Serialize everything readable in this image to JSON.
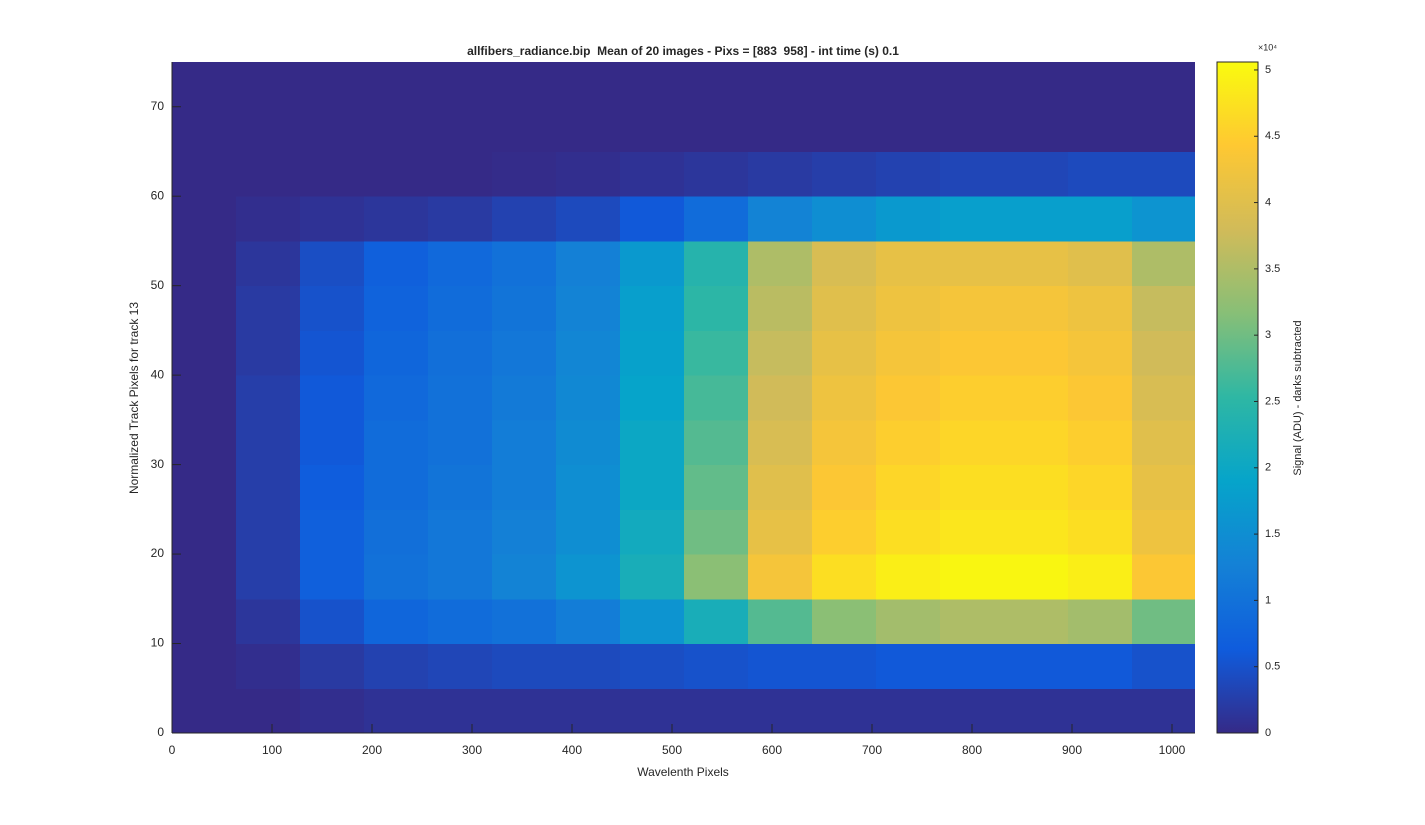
{
  "chart_data": {
    "type": "heatmap",
    "title": "allfibers_radiance.bip  Mean of 20 images - Pixs = [883  958] - int time (s) 0.1",
    "x_label": "Wavelenth Pixels",
    "y_label": "Normalized Track Pixels for track 13",
    "colorbar_label": "Signal (ADU) - darks subtracted",
    "colorbar_exponent": "×10⁴",
    "xlim": [
      0,
      1023
    ],
    "xticks": [
      0,
      100,
      200,
      300,
      400,
      500,
      600,
      700,
      800,
      900,
      1000
    ],
    "ylim": [
      0,
      75
    ],
    "yticks": [
      0,
      10,
      20,
      30,
      40,
      50,
      60,
      70
    ],
    "clim": [
      0,
      5.06
    ],
    "cticks": [
      0,
      0.5,
      1,
      1.5,
      2,
      2.5,
      3,
      3.5,
      4,
      4.5,
      5
    ],
    "colormap": [
      "#352a87",
      "#0f5cdd",
      "#1481d6",
      "#06a4ca",
      "#2eb7a4",
      "#87bf77",
      "#d1bb59",
      "#fec832",
      "#f9fb0e"
    ],
    "x_edges": [
      0,
      64,
      128,
      192,
      256,
      320,
      384,
      448,
      512,
      576,
      640,
      704,
      768,
      832,
      896,
      960,
      1023
    ],
    "y_edges": [
      0,
      5,
      10,
      15,
      20,
      25,
      30,
      35,
      40,
      45,
      50,
      55,
      60,
      65,
      70,
      75
    ],
    "values": [
      [
        0,
        0,
        0.05,
        0.1,
        0.1,
        0.1,
        0.1,
        0.1,
        0.1,
        0.1,
        0.1,
        0.1,
        0.1,
        0.1,
        0.1,
        0.1
      ],
      [
        0,
        0.05,
        0.2,
        0.3,
        0.35,
        0.4,
        0.4,
        0.45,
        0.5,
        0.55,
        0.55,
        0.6,
        0.6,
        0.6,
        0.6,
        0.5
      ],
      [
        0,
        0.15,
        0.5,
        0.8,
        0.9,
        1.0,
        1.2,
        1.6,
        2.2,
        2.8,
        3.2,
        3.4,
        3.5,
        3.5,
        3.4,
        3.0
      ],
      [
        0,
        0.25,
        0.7,
        1.0,
        1.1,
        1.3,
        1.6,
        2.2,
        3.2,
        4.3,
        4.7,
        4.9,
        5.0,
        5.0,
        4.9,
        4.4
      ],
      [
        0,
        0.25,
        0.7,
        0.95,
        1.1,
        1.25,
        1.5,
        2.1,
        3.0,
        4.1,
        4.5,
        4.7,
        4.8,
        4.8,
        4.7,
        4.2
      ],
      [
        0,
        0.25,
        0.65,
        0.9,
        1.05,
        1.2,
        1.5,
        2.0,
        2.9,
        4.0,
        4.4,
        4.6,
        4.7,
        4.7,
        4.6,
        4.1
      ],
      [
        0,
        0.25,
        0.6,
        0.9,
        1.0,
        1.2,
        1.45,
        2.0,
        2.8,
        3.9,
        4.3,
        4.5,
        4.6,
        4.6,
        4.5,
        4.0
      ],
      [
        0,
        0.25,
        0.6,
        0.85,
        1.0,
        1.15,
        1.4,
        1.9,
        2.7,
        3.8,
        4.2,
        4.4,
        4.5,
        4.5,
        4.4,
        3.9
      ],
      [
        0,
        0.2,
        0.55,
        0.8,
        0.95,
        1.1,
        1.35,
        1.85,
        2.6,
        3.7,
        4.1,
        4.3,
        4.4,
        4.4,
        4.3,
        3.8
      ],
      [
        0,
        0.2,
        0.5,
        0.75,
        0.9,
        1.05,
        1.3,
        1.8,
        2.5,
        3.6,
        4.0,
        4.2,
        4.3,
        4.3,
        4.2,
        3.7
      ],
      [
        0,
        0.15,
        0.45,
        0.7,
        0.85,
        1.0,
        1.25,
        1.7,
        2.4,
        3.5,
        3.9,
        4.1,
        4.1,
        4.1,
        4.0,
        3.5
      ],
      [
        0,
        0.05,
        0.1,
        0.15,
        0.2,
        0.3,
        0.4,
        0.6,
        0.9,
        1.3,
        1.5,
        1.7,
        1.8,
        1.8,
        1.8,
        1.6
      ],
      [
        0,
        0,
        0,
        0,
        0,
        0.02,
        0.05,
        0.1,
        0.15,
        0.2,
        0.25,
        0.3,
        0.35,
        0.35,
        0.4,
        0.4
      ],
      [
        0,
        0,
        0,
        0,
        0,
        0,
        0,
        0,
        0,
        0,
        0,
        0,
        0,
        0,
        0,
        0
      ],
      [
        0,
        0,
        0,
        0,
        0,
        0,
        0,
        0,
        0,
        0,
        0,
        0,
        0,
        0,
        0,
        0
      ]
    ]
  }
}
